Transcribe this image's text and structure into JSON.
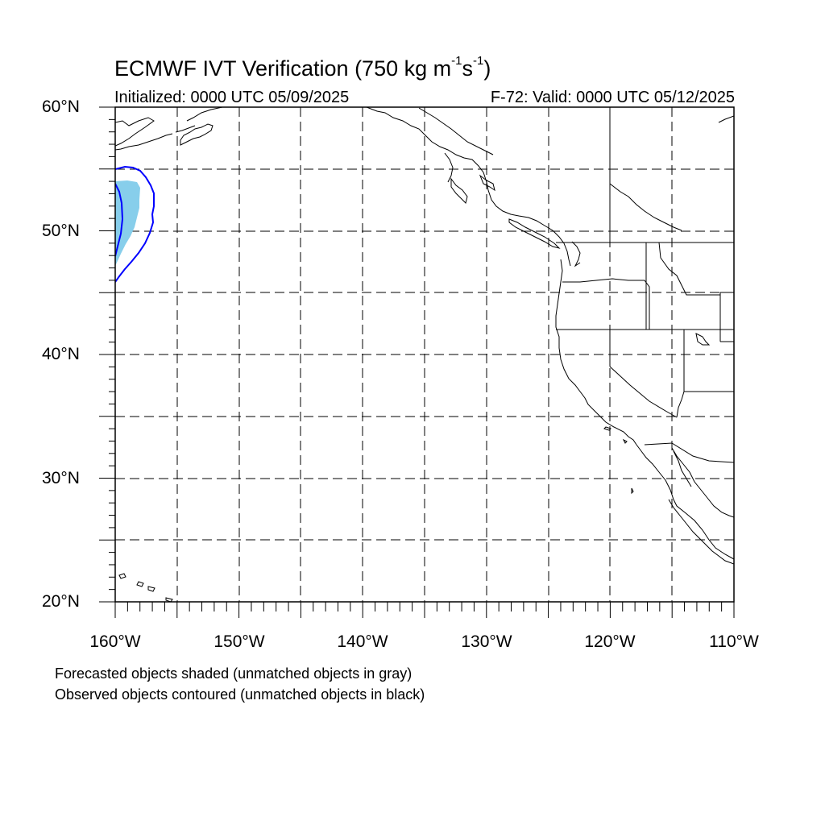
{
  "title": {
    "main": "ECMWF IVT Verification (750 kg m",
    "sup1": "-1",
    "mid": "s",
    "sup2": "-1",
    "close": ")"
  },
  "subtitle_left": "Initialized: 0000 UTC 05/09/2025",
  "subtitle_right": "F-72: Valid: 0000 UTC 05/12/2025",
  "lat_labels": [
    "60°N",
    "50°N",
    "40°N",
    "30°N",
    "20°N"
  ],
  "lon_labels": [
    "160°W",
    "150°W",
    "140°W",
    "130°W",
    "120°W",
    "110°W"
  ],
  "map_extent": {
    "lon_min": -160,
    "lon_max": -110,
    "lat_min": 20,
    "lat_max": 60
  },
  "colors": {
    "forecast_fill": "#87CEEB",
    "observed_contour": "#0000FF",
    "grid": "#000000",
    "coastline": "#000000"
  },
  "notes": [
    "Forecasted objects shaded (unmatched objects in gray)",
    "Observed objects contoured (unmatched objects in black)"
  ]
}
